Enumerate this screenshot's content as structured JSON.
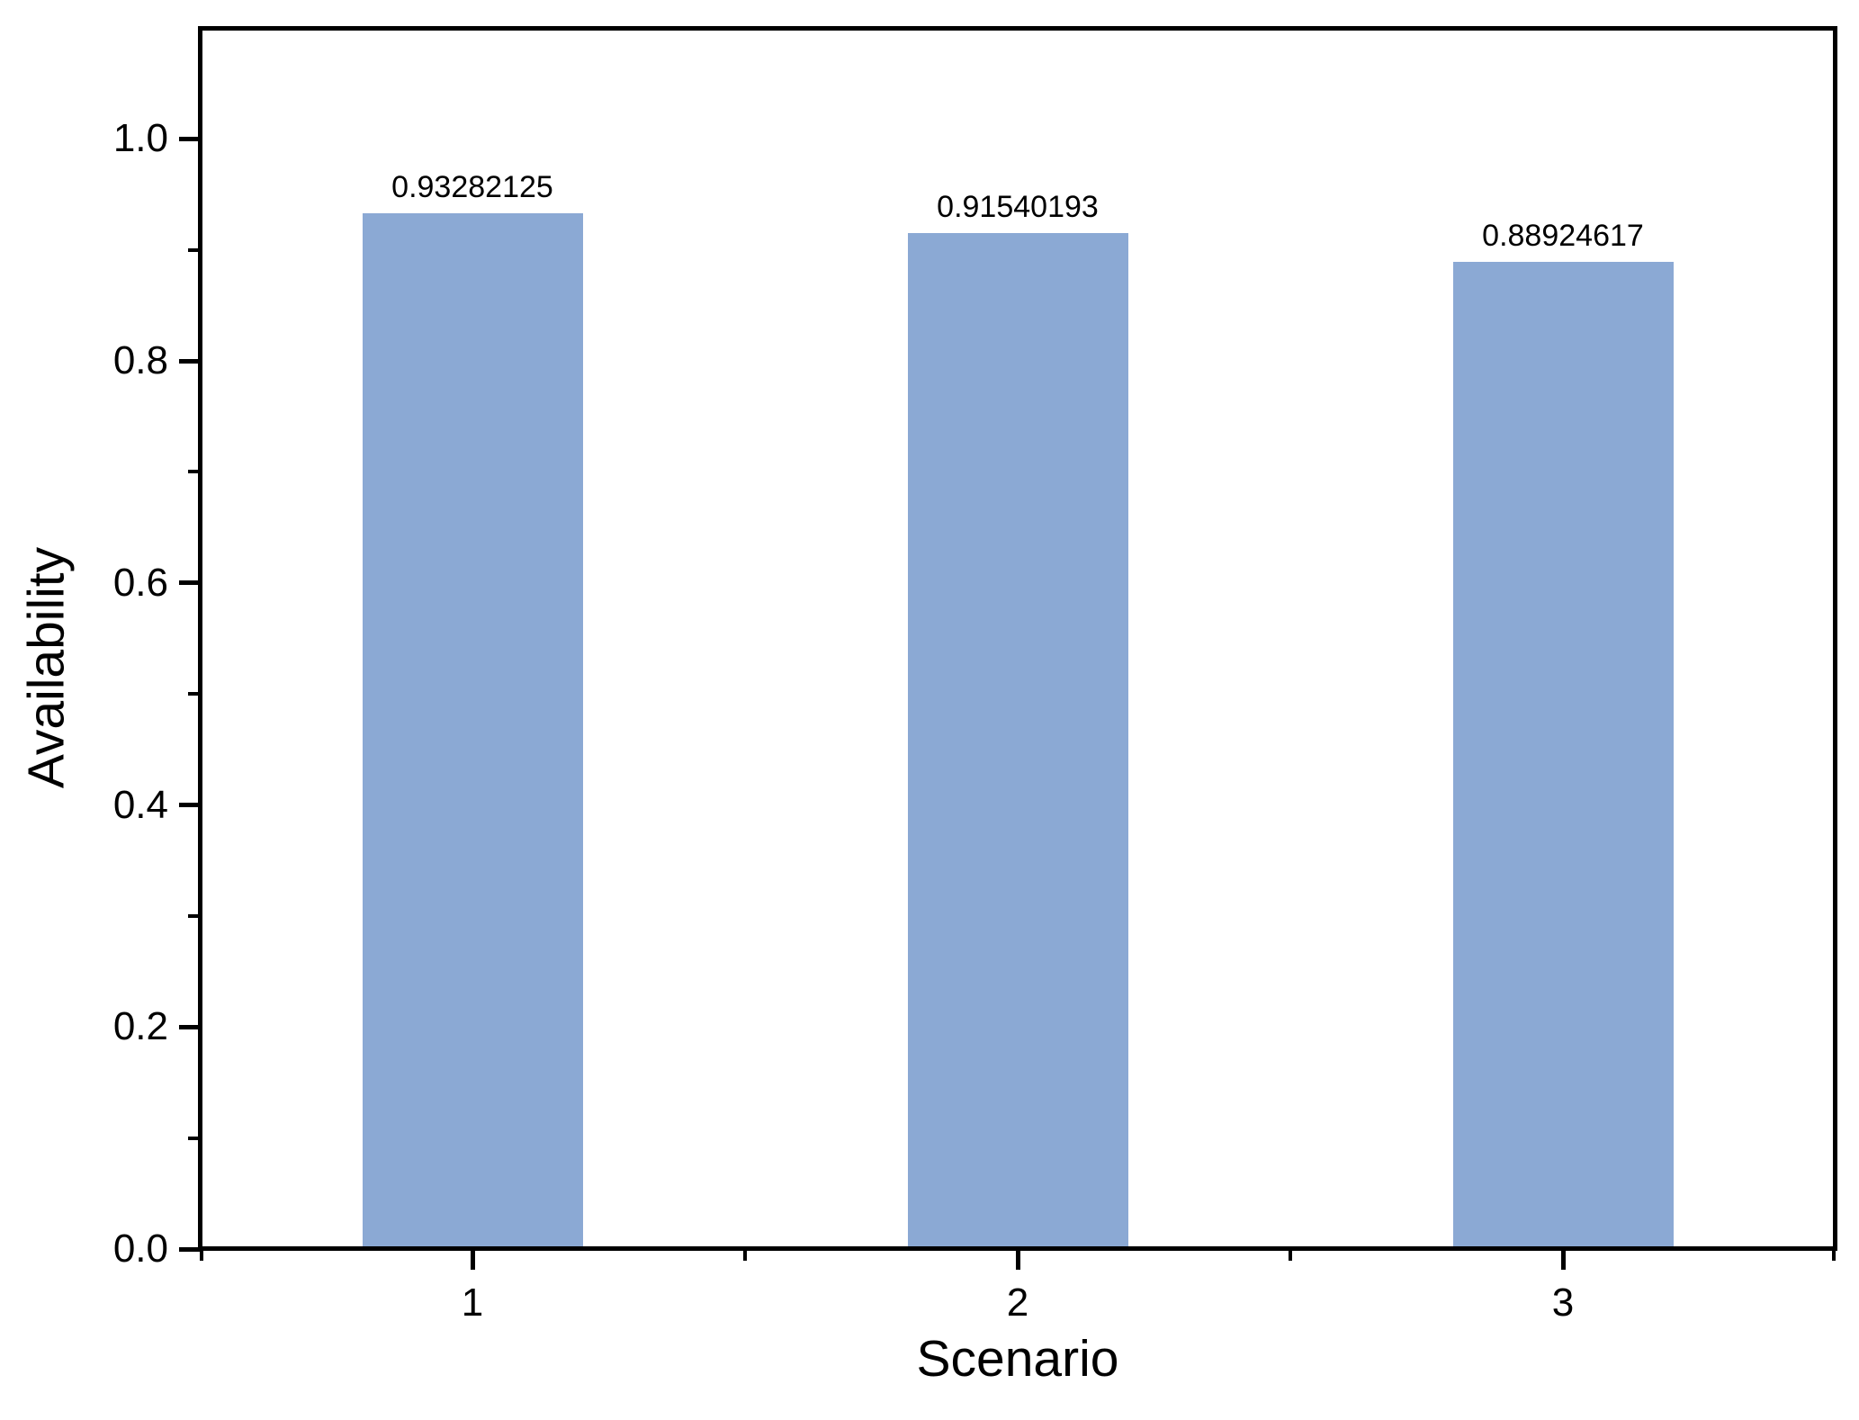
{
  "figure": {
    "background": "#FFFFFF"
  },
  "chart_data": {
    "type": "bar",
    "title": "",
    "xlabel": "Scenario",
    "ylabel": "Availability",
    "categories": [
      "1",
      "2",
      "3"
    ],
    "values": [
      0.93282125,
      0.91540193,
      0.88924617
    ],
    "value_labels": [
      "0.93282125",
      "0.91540193",
      "0.88924617"
    ],
    "xlim": [
      0.5,
      3.5
    ],
    "ylim": [
      0,
      1.1
    ],
    "y_major_ticks": [
      0.0,
      0.2,
      0.4,
      0.6,
      0.8,
      1.0
    ],
    "y_major_tick_labels": [
      "0.0",
      "0.2",
      "0.4",
      "0.6",
      "0.8",
      "1.0"
    ],
    "y_minor_ticks": [
      0.1,
      0.3,
      0.5,
      0.7,
      0.9
    ],
    "x_major_ticks": [
      1,
      2,
      3
    ],
    "x_major_tick_labels": [
      "1",
      "2",
      "3"
    ],
    "x_minor_ticks": [
      0.5,
      1.5,
      2.5,
      3.5
    ],
    "grid": false,
    "legend": false,
    "bar_color": "#8BA9D4",
    "axis_color": "#000000",
    "text_color": "#000000"
  }
}
